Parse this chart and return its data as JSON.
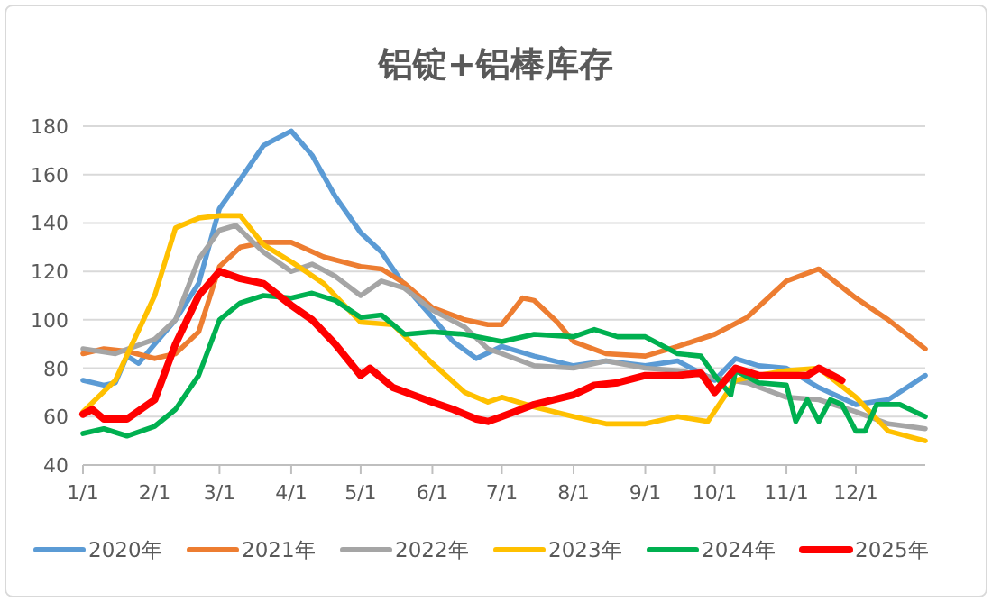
{
  "chart_data": {
    "type": "line",
    "title": "铝锭+铝棒库存",
    "xlim": [
      "--01-01",
      "--12-31"
    ],
    "ylim": [
      40,
      180
    ],
    "yticks": [
      40,
      60,
      80,
      100,
      120,
      140,
      160,
      180
    ],
    "xticks": [
      {
        "value": "--01-01",
        "label": "1/1"
      },
      {
        "value": "--02-01",
        "label": "2/1"
      },
      {
        "value": "--03-01",
        "label": "3/1"
      },
      {
        "value": "--04-01",
        "label": "4/1"
      },
      {
        "value": "--05-01",
        "label": "5/1"
      },
      {
        "value": "--06-01",
        "label": "6/1"
      },
      {
        "value": "--07-01",
        "label": "7/1"
      },
      {
        "value": "--08-01",
        "label": "8/1"
      },
      {
        "value": "--09-01",
        "label": "9/1"
      },
      {
        "value": "--10-01",
        "label": "10/1"
      },
      {
        "value": "--11-01",
        "label": "11/1"
      },
      {
        "value": "--12-01",
        "label": "12/1"
      }
    ],
    "grid": "y",
    "legend": "bottom",
    "marker": "none",
    "line_style": "solid",
    "series": [
      {
        "name": "2020年",
        "color": "#5b9bd5",
        "x": [
          "--01-01",
          "--01-10",
          "--01-15",
          "--01-20",
          "--01-25",
          "--02-01",
          "--02-10",
          "--02-20",
          "--03-01",
          "--03-10",
          "--03-20",
          "--04-01",
          "--04-10",
          "--04-20",
          "--05-01",
          "--05-10",
          "--05-20",
          "--06-01",
          "--06-10",
          "--06-20",
          "--07-01",
          "--07-15",
          "--08-01",
          "--08-15",
          "--09-01",
          "--09-15",
          "--10-01",
          "--10-10",
          "--10-20",
          "--11-01",
          "--11-15",
          "--12-01",
          "--12-15",
          "--12-31"
        ],
        "values": [
          75,
          73,
          74,
          85,
          82,
          90,
          100,
          115,
          146,
          158,
          172,
          178,
          168,
          151,
          136,
          128,
          114,
          101,
          91,
          84,
          89,
          85,
          81,
          83,
          81,
          83,
          75,
          84,
          81,
          80,
          72,
          65,
          67,
          77
        ]
      },
      {
        "name": "2021年",
        "color": "#ed7d31",
        "x": [
          "--01-01",
          "--01-10",
          "--01-20",
          "--02-01",
          "--02-10",
          "--02-20",
          "--03-01",
          "--03-10",
          "--03-20",
          "--04-01",
          "--04-15",
          "--05-01",
          "--05-10",
          "--05-20",
          "--06-01",
          "--06-15",
          "--06-25",
          "--07-01",
          "--07-10",
          "--07-15",
          "--07-25",
          "--08-01",
          "--08-15",
          "--09-01",
          "--09-15",
          "--10-01",
          "--10-15",
          "--11-01",
          "--11-15",
          "--12-01",
          "--12-15",
          "--12-31"
        ],
        "values": [
          86,
          88,
          87,
          84,
          86,
          95,
          122,
          130,
          132,
          132,
          126,
          122,
          121,
          115,
          105,
          100,
          98,
          98,
          109,
          108,
          99,
          91,
          86,
          85,
          89,
          94,
          101,
          116,
          121,
          109,
          100,
          88
        ]
      },
      {
        "name": "2022年",
        "color": "#a5a5a5",
        "x": [
          "--01-01",
          "--01-15",
          "--02-01",
          "--02-10",
          "--02-20",
          "--03-01",
          "--03-08",
          "--03-20",
          "--04-01",
          "--04-10",
          "--04-20",
          "--05-01",
          "--05-10",
          "--05-20",
          "--06-01",
          "--06-15",
          "--06-25",
          "--07-01",
          "--07-15",
          "--08-01",
          "--08-15",
          "--09-01",
          "--09-15",
          "--10-01",
          "--10-15",
          "--11-01",
          "--11-15",
          "--12-01",
          "--12-15",
          "--12-31"
        ],
        "values": [
          88,
          86,
          92,
          100,
          125,
          137,
          139,
          128,
          120,
          123,
          118,
          110,
          116,
          113,
          104,
          97,
          88,
          86,
          81,
          80,
          83,
          80,
          79,
          76,
          74,
          68,
          67,
          62,
          57,
          55
        ]
      },
      {
        "name": "2023年",
        "color": "#ffc000",
        "x": [
          "--01-01",
          "--01-15",
          "--02-01",
          "--02-10",
          "--02-20",
          "--03-01",
          "--03-10",
          "--03-20",
          "--04-01",
          "--04-15",
          "--05-01",
          "--05-15",
          "--06-01",
          "--06-15",
          "--06-25",
          "--07-01",
          "--07-15",
          "--08-01",
          "--08-15",
          "--09-01",
          "--09-15",
          "--09-28",
          "--10-10",
          "--10-20",
          "--11-01",
          "--11-15",
          "--12-01",
          "--12-15",
          "--12-31"
        ],
        "values": [
          62,
          75,
          110,
          138,
          142,
          143,
          143,
          131,
          124,
          115,
          99,
          98,
          82,
          70,
          66,
          68,
          64,
          60,
          57,
          57,
          60,
          58,
          75,
          77,
          79,
          80,
          68,
          54,
          50
        ]
      },
      {
        "name": "2024年",
        "color": "#00b050",
        "x": [
          "--01-01",
          "--01-10",
          "--01-20",
          "--02-01",
          "--02-10",
          "--02-20",
          "--03-01",
          "--03-10",
          "--03-20",
          "--04-01",
          "--04-10",
          "--04-20",
          "--05-01",
          "--05-10",
          "--05-20",
          "--06-01",
          "--06-15",
          "--07-01",
          "--07-15",
          "--08-01",
          "--08-10",
          "--08-20",
          "--09-01",
          "--09-15",
          "--09-25",
          "--10-01",
          "--10-08",
          "--10-10",
          "--10-20",
          "--11-01",
          "--11-05",
          "--11-10",
          "--11-15",
          "--11-20",
          "--11-25",
          "--12-01",
          "--12-05",
          "--12-10",
          "--12-20",
          "--12-31"
        ],
        "values": [
          53,
          55,
          52,
          56,
          63,
          77,
          100,
          107,
          110,
          109,
          111,
          108,
          101,
          102,
          94,
          95,
          94,
          91,
          94,
          93,
          96,
          93,
          93,
          86,
          85,
          77,
          69,
          79,
          74,
          73,
          58,
          67,
          58,
          67,
          65,
          54,
          54,
          65,
          65,
          60
        ]
      },
      {
        "name": "2025年",
        "color": "#ff0000",
        "x": [
          "--01-01",
          "--01-05",
          "--01-10",
          "--01-20",
          "--02-01",
          "--02-10",
          "--02-20",
          "--03-01",
          "--03-10",
          "--03-20",
          "--04-01",
          "--04-10",
          "--04-20",
          "--05-01",
          "--05-05",
          "--05-15",
          "--06-01",
          "--06-10",
          "--06-20",
          "--06-25",
          "--07-01",
          "--07-15",
          "--08-01",
          "--08-10",
          "--08-20",
          "--09-01",
          "--09-15",
          "--09-25",
          "--10-01",
          "--10-10",
          "--10-20",
          "--11-01",
          "--11-10",
          "--11-15",
          "--11-25"
        ],
        "values": [
          61,
          63,
          59,
          59,
          67,
          90,
          110,
          120,
          117,
          115,
          106,
          100,
          90,
          77,
          80,
          72,
          66,
          63,
          59,
          58,
          60,
          65,
          69,
          73,
          74,
          77,
          77,
          78,
          70,
          80,
          77,
          77,
          77,
          80,
          75
        ]
      }
    ]
  }
}
